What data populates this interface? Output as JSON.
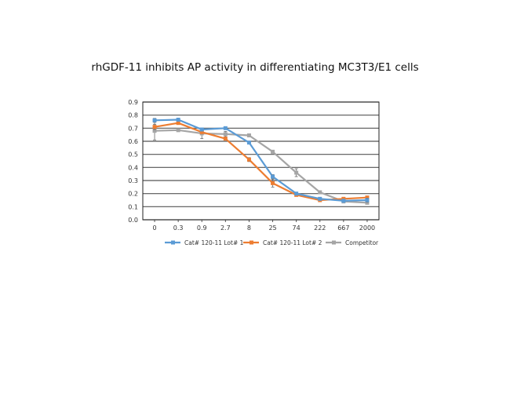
{
  "chart_data": {
    "type": "line",
    "title": "rhGDF-11 inhibits AP activity in differentiating MC3T3/E1 cells",
    "xlabel": "",
    "ylabel": "",
    "categories": [
      "0",
      "0.3",
      "0.9",
      "2.7",
      "8",
      "25",
      "74",
      "222",
      "667",
      "2000"
    ],
    "ylim": [
      0,
      0.9
    ],
    "yticks": [
      "0.0",
      "0.1",
      "0.2",
      "0.3",
      "0.4",
      "0.5",
      "0.6",
      "0.7",
      "0.8",
      "0.9"
    ],
    "grid": true,
    "legend_position": "bottom",
    "series": [
      {
        "name": "Cat# 120-11 Lot# 1",
        "color": "#5b9bd5",
        "values": [
          0.76,
          0.765,
          0.69,
          0.7,
          0.59,
          0.33,
          0.2,
          0.16,
          0.145,
          0.15
        ],
        "errors": [
          0.015,
          0.01,
          0.01,
          0.01,
          0.01,
          0.015,
          0.01,
          0.01,
          0.005,
          0.015
        ]
      },
      {
        "name": "Cat# 120-11 Lot# 2",
        "color": "#ed7d31",
        "values": [
          0.71,
          0.74,
          0.67,
          0.62,
          0.46,
          0.28,
          0.19,
          0.15,
          0.16,
          0.17
        ],
        "errors": [
          0.02,
          0.01,
          0.01,
          0.01,
          0.015,
          0.03,
          0.005,
          0.005,
          0.005,
          0.005
        ]
      },
      {
        "name": "Competitor",
        "color": "#a5a5a5",
        "values": [
          0.68,
          0.685,
          0.66,
          0.655,
          0.645,
          0.52,
          0.36,
          0.21,
          0.14,
          0.13
        ],
        "errors": [
          0.07,
          0.01,
          0.04,
          0.02,
          0.01,
          0.01,
          0.03,
          0.01,
          0.01,
          0.01
        ]
      }
    ]
  }
}
